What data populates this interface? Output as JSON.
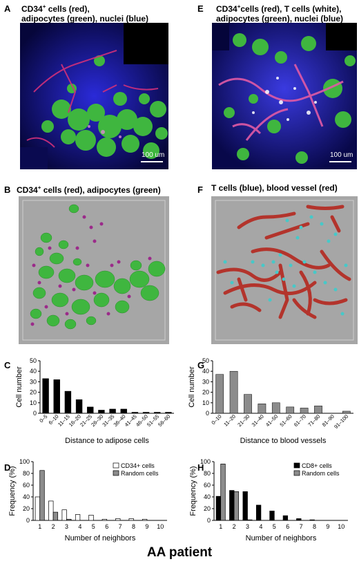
{
  "footer": "AA patient",
  "panels": {
    "A": {
      "label": "A",
      "title_line1": "CD34",
      "title_sup": "+",
      "title_rest1": " cells (red),",
      "title_line2": "adipocytes (green), nuclei (blue)",
      "scalebar": "100 um"
    },
    "E": {
      "label": "E",
      "title_line1": "CD34",
      "title_sup": "+",
      "title_rest1": "cells (red), T cells (white),",
      "title_line2": "adipocytes (green), nuclei (blue)",
      "scalebar": "100 um"
    },
    "B": {
      "label": "B",
      "title_pre": "CD34",
      "title_sup": "+",
      "title_post": " cells (red), adipocytes (green)"
    },
    "F": {
      "label": "F",
      "title": "T cells (blue), blood vessel (red)"
    },
    "C": {
      "label": "C"
    },
    "G": {
      "label": "G"
    },
    "D": {
      "label": "D"
    },
    "H": {
      "label": "H"
    }
  },
  "colors": {
    "bar_black": "#000000",
    "bar_gray": "#8c8c8c",
    "bar_white": "#ffffff",
    "adipocyte": "#3fb63f",
    "cd34": "#9b2a8a",
    "vessel": "#b3342c",
    "tcell": "#46c9c9",
    "render_bg": "#a6a6a6"
  },
  "chart_data": [
    {
      "id": "C",
      "type": "bar",
      "categories": [
        "0–5",
        "6–10",
        "11–15",
        "16–20",
        "21–25",
        "26–30",
        "31–35",
        "36–40",
        "41–45",
        "46–50",
        "51–55",
        "56–60"
      ],
      "values": [
        33,
        32,
        21,
        13,
        6,
        3,
        4,
        4,
        1,
        1,
        1,
        1
      ],
      "xlabel": "Distance to adipose cells",
      "ylabel": "Cell number",
      "ylim": [
        0,
        50
      ],
      "yticks": [
        "0",
        "10",
        "20",
        "30",
        "40",
        "50"
      ],
      "color": "#000000"
    },
    {
      "id": "G",
      "type": "bar",
      "categories": [
        "0–10",
        "11–20",
        "21–30",
        "31–40",
        "41–50",
        "51–60",
        "61–70",
        "71–80",
        "81–90",
        "91–100"
      ],
      "values": [
        37,
        40,
        18,
        9,
        10,
        6,
        5,
        7,
        0,
        2
      ],
      "xlabel": "Distance to blood vessels",
      "ylabel": "Cell number",
      "ylim": [
        0,
        50
      ],
      "yticks": [
        "0",
        "10",
        "20",
        "30",
        "40",
        "50"
      ],
      "color": "#8c8c8c"
    },
    {
      "id": "D",
      "type": "bar",
      "categories": [
        "1",
        "2",
        "3",
        "4",
        "5",
        "6",
        "7",
        "8",
        "9",
        "10"
      ],
      "series": [
        {
          "name": "CD34+ cells",
          "values": [
            40,
            33,
            18,
            10,
            9,
            2,
            3,
            3,
            2,
            0
          ],
          "color": "#ffffff"
        },
        {
          "name": "Random cells",
          "values": [
            85,
            14,
            2,
            0,
            0,
            0,
            0,
            0,
            0,
            0
          ],
          "color": "#8c8c8c"
        }
      ],
      "xlabel": "Number of neighbors",
      "ylabel": "Frequency (%)",
      "ylim": [
        0,
        100
      ],
      "yticks": [
        "0",
        "20",
        "40",
        "60",
        "80",
        "100"
      ],
      "legend": "top-right"
    },
    {
      "id": "H",
      "type": "bar",
      "categories": [
        "1",
        "2",
        "3",
        "4",
        "5",
        "6",
        "7",
        "8",
        "9",
        "10"
      ],
      "series": [
        {
          "name": "CD8+ cells",
          "values": [
            41,
            51,
            49,
            26,
            16,
            8,
            3,
            1,
            0,
            0
          ],
          "color": "#000000"
        },
        {
          "name": "Random cells",
          "values": [
            96,
            49,
            1,
            0,
            0,
            0,
            0,
            0,
            0,
            0
          ],
          "color": "#8c8c8c"
        }
      ],
      "xlabel": "Number of neighbors",
      "ylabel": "Frequency (%)",
      "ylim": [
        0,
        100
      ],
      "yticks": [
        "0",
        "20",
        "40",
        "60",
        "80",
        "100"
      ],
      "legend": "top-right"
    }
  ]
}
